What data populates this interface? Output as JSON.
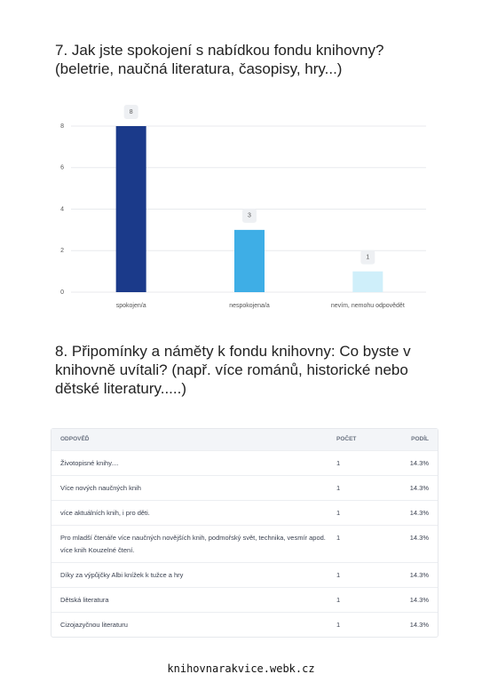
{
  "chart_data": {
    "type": "bar",
    "title": "7. Jak jste spokojení s nabídkou fondu knihovny?",
    "subtitle": "(beletrie, naučná literatura, časopisy, hry...)",
    "categories": [
      "spokojen/a",
      "nespokojena/a",
      "nevím, nemohu odpovědět"
    ],
    "values": [
      8,
      3,
      1
    ],
    "colors": [
      "#1b3a8a",
      "#3eaee6",
      "#cfeffa"
    ],
    "ylim": [
      0,
      8
    ],
    "yticks": [
      0,
      2,
      4,
      6,
      8
    ],
    "grid": true
  },
  "section8": {
    "title": "8. Připomínky a náměty k fondu knihovny: Co byste v knihovně uvítali? (např. více románů, historické nebo dětské literatury.....)",
    "table": {
      "header": [
        "ODPOVĚĎ",
        "POČET",
        "PODÍL"
      ],
      "rows": [
        [
          "Životopisné knihy....",
          "1",
          "14.3%"
        ],
        [
          "Více nových naučných knih",
          "1",
          "14.3%"
        ],
        [
          "více aktuálních knih, i pro děti.",
          "1",
          "14.3%"
        ],
        [
          "Pro mladší čtenáře více naučných novějších knih, podmořský svět, technika, vesmír apod. více knih Kouzelné čtení.",
          "1",
          "14.3%"
        ],
        [
          "Díky za výpůjčky Albi knížek k tužce a hry",
          "1",
          "14.3%"
        ],
        [
          "Dětská literatura",
          "1",
          "14.3%"
        ],
        [
          "Cizojazyčnou literaturu",
          "1",
          "14.3%"
        ]
      ]
    }
  },
  "footer": "knihovnarakvice.webk.cz"
}
